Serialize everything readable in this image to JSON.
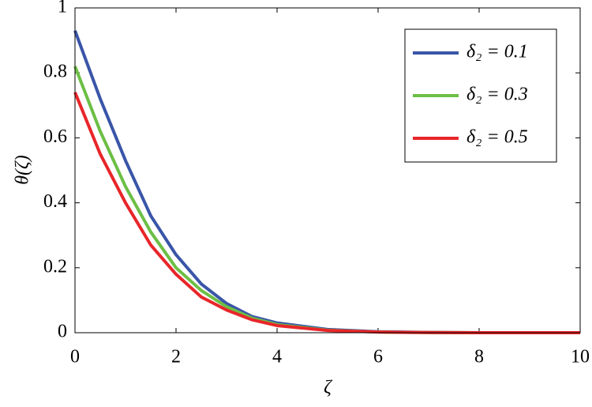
{
  "chart_data": {
    "type": "line",
    "x_label": "ζ",
    "y_label": "θ(ζ)",
    "x": [
      0,
      0.5,
      1,
      1.5,
      2,
      2.5,
      3,
      3.5,
      4,
      5,
      6,
      7,
      8,
      9,
      10
    ],
    "series": [
      {
        "name": "δ₂ = 0.1",
        "color": "#3a55a8",
        "values": [
          0.93,
          0.72,
          0.53,
          0.36,
          0.24,
          0.15,
          0.09,
          0.05,
          0.03,
          0.01,
          0.003,
          0.001,
          0,
          0,
          0
        ]
      },
      {
        "name": "δ₂ = 0.3",
        "color": "#6cbf45",
        "values": [
          0.82,
          0.62,
          0.45,
          0.31,
          0.2,
          0.13,
          0.08,
          0.045,
          0.025,
          0.008,
          0.002,
          0.0005,
          0,
          0,
          0
        ]
      },
      {
        "name": "δ₂ = 0.5",
        "color": "#e8262a",
        "values": [
          0.74,
          0.55,
          0.4,
          0.27,
          0.18,
          0.11,
          0.07,
          0.04,
          0.022,
          0.007,
          0.002,
          0.0005,
          0,
          0,
          0
        ]
      }
    ],
    "xlim": [
      0,
      10
    ],
    "xticks": [
      0,
      2,
      4,
      6,
      8,
      10
    ],
    "ylim": [
      0,
      1
    ],
    "yticks": [
      0,
      0.2,
      0.4,
      0.6,
      0.8,
      1
    ],
    "legend": "upper-right"
  }
}
